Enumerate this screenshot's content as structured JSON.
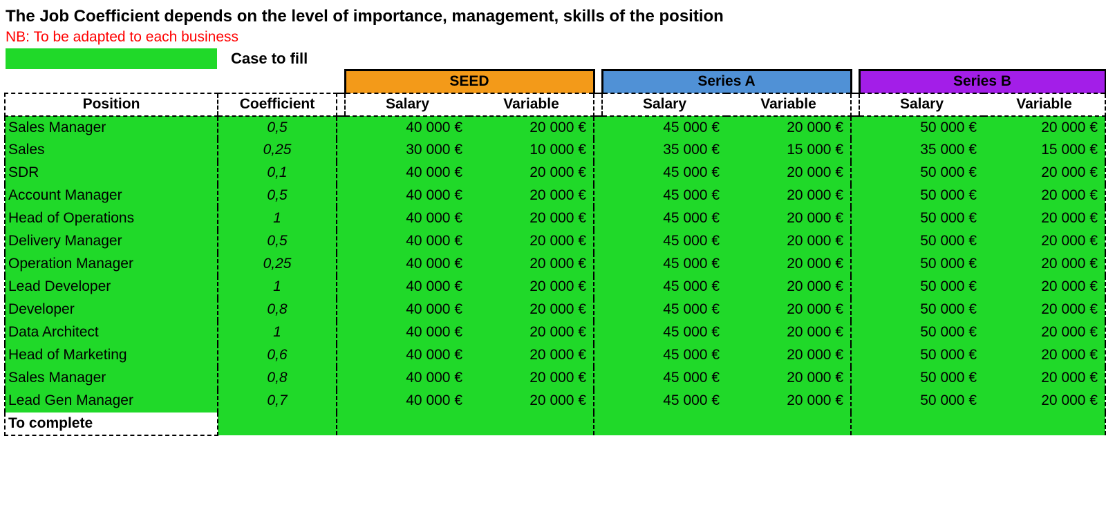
{
  "colors": {
    "fill_green": "#20d929",
    "seed": "#f39a19",
    "series_a": "#5091d6",
    "series_b": "#a31ee8",
    "subtitle_red": "#ff0000"
  },
  "title": "The Job Coefficient depends on the level of importance, management, skills of the position",
  "subtitle": "NB: To be adapted to each business",
  "legend_label": "Case to fill",
  "stage_headers": [
    "SEED",
    "Series A",
    "Series B"
  ],
  "sub_headers": {
    "position": "Position",
    "coefficient": "Coefficient",
    "salary": "Salary",
    "variable": "Variable"
  },
  "footer": "To complete",
  "rows": [
    {
      "position": "Sales Manager",
      "coefficient": "0,5",
      "seed_salary": "40 000 €",
      "seed_variable": "20 000 €",
      "a_salary": "45 000 €",
      "a_variable": "20 000 €",
      "b_salary": "50 000 €",
      "b_variable": "20 000 €"
    },
    {
      "position": "Sales",
      "coefficient": "0,25",
      "seed_salary": "30 000 €",
      "seed_variable": "10 000 €",
      "a_salary": "35 000 €",
      "a_variable": "15 000 €",
      "b_salary": "35 000 €",
      "b_variable": "15 000 €"
    },
    {
      "position": "SDR",
      "coefficient": "0,1",
      "seed_salary": "40 000 €",
      "seed_variable": "20 000 €",
      "a_salary": "45 000 €",
      "a_variable": "20 000 €",
      "b_salary": "50 000 €",
      "b_variable": "20 000 €"
    },
    {
      "position": "Account Manager",
      "coefficient": "0,5",
      "seed_salary": "40 000 €",
      "seed_variable": "20 000 €",
      "a_salary": "45 000 €",
      "a_variable": "20 000 €",
      "b_salary": "50 000 €",
      "b_variable": "20 000 €"
    },
    {
      "position": "Head of Operations",
      "coefficient": "1",
      "seed_salary": "40 000 €",
      "seed_variable": "20 000 €",
      "a_salary": "45 000 €",
      "a_variable": "20 000 €",
      "b_salary": "50 000 €",
      "b_variable": "20 000 €"
    },
    {
      "position": "Delivery Manager",
      "coefficient": "0,5",
      "seed_salary": "40 000 €",
      "seed_variable": "20 000 €",
      "a_salary": "45 000 €",
      "a_variable": "20 000 €",
      "b_salary": "50 000 €",
      "b_variable": "20 000 €"
    },
    {
      "position": "Operation Manager",
      "coefficient": "0,25",
      "seed_salary": "40 000 €",
      "seed_variable": "20 000 €",
      "a_salary": "45 000 €",
      "a_variable": "20 000 €",
      "b_salary": "50 000 €",
      "b_variable": "20 000 €"
    },
    {
      "position": "Lead Developer",
      "coefficient": "1",
      "seed_salary": "40 000 €",
      "seed_variable": "20 000 €",
      "a_salary": "45 000 €",
      "a_variable": "20 000 €",
      "b_salary": "50 000 €",
      "b_variable": "20 000 €"
    },
    {
      "position": "Developer",
      "coefficient": "0,8",
      "seed_salary": "40 000 €",
      "seed_variable": "20 000 €",
      "a_salary": "45 000 €",
      "a_variable": "20 000 €",
      "b_salary": "50 000 €",
      "b_variable": "20 000 €"
    },
    {
      "position": "Data Architect",
      "coefficient": "1",
      "seed_salary": "40 000 €",
      "seed_variable": "20 000 €",
      "a_salary": "45 000 €",
      "a_variable": "20 000 €",
      "b_salary": "50 000 €",
      "b_variable": "20 000 €"
    },
    {
      "position": "Head of Marketing",
      "coefficient": "0,6",
      "seed_salary": "40 000 €",
      "seed_variable": "20 000 €",
      "a_salary": "45 000 €",
      "a_variable": "20 000 €",
      "b_salary": "50 000 €",
      "b_variable": "20 000 €"
    },
    {
      "position": "Sales Manager",
      "coefficient": "0,8",
      "seed_salary": "40 000 €",
      "seed_variable": "20 000 €",
      "a_salary": "45 000 €",
      "a_variable": "20 000 €",
      "b_salary": "50 000 €",
      "b_variable": "20 000 €"
    },
    {
      "position": "Lead Gen Manager",
      "coefficient": "0,7",
      "seed_salary": "40 000 €",
      "seed_variable": "20 000 €",
      "a_salary": "45 000 €",
      "a_variable": "20 000 €",
      "b_salary": "50 000 €",
      "b_variable": "20 000 €"
    }
  ]
}
